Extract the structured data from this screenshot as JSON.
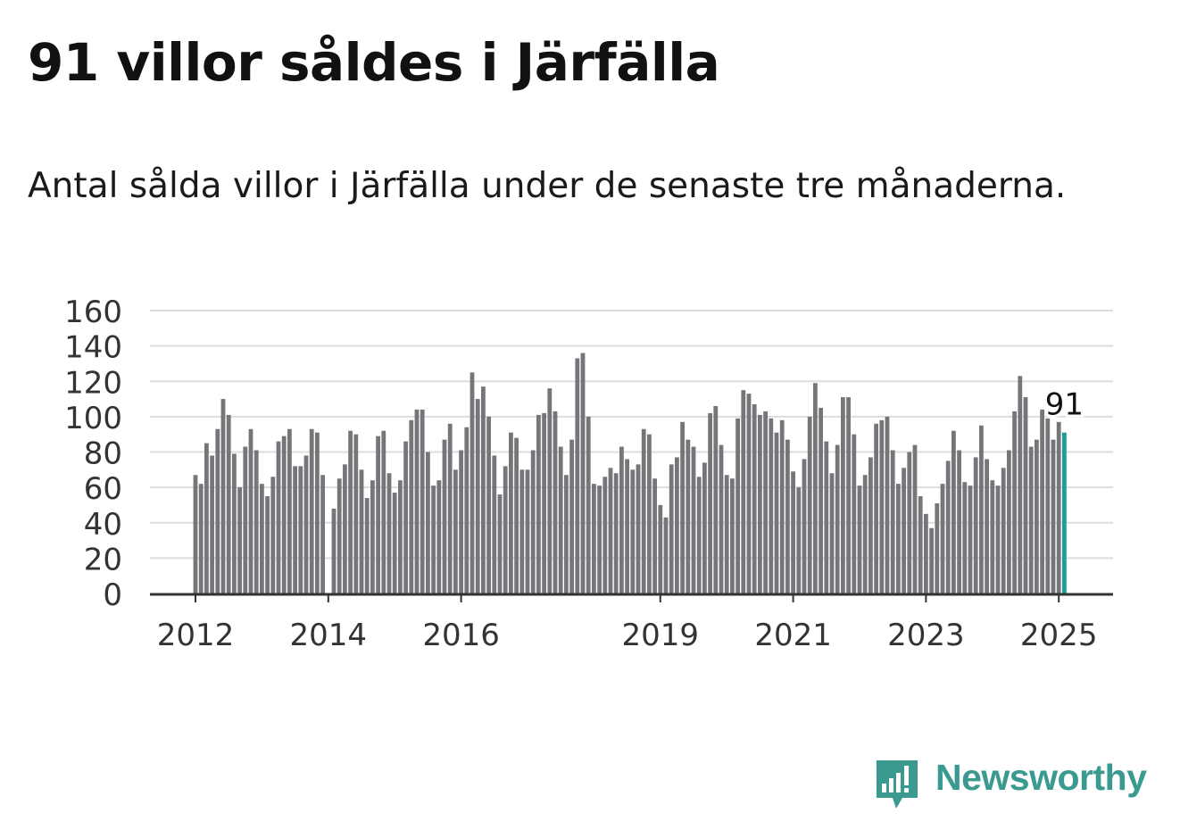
{
  "header": {
    "title": "91 villor såldes i Järfälla",
    "subtitle": "Antal sålda villor i Järfälla under de senaste tre månaderna."
  },
  "brand": {
    "name": "Newsworthy",
    "icon": "newsworthy-chart-icon",
    "color": "#3a9a90"
  },
  "chart_data": {
    "type": "bar",
    "title": "",
    "xlabel": "",
    "ylabel": "",
    "ylim": [
      0,
      160
    ],
    "yticks": [
      "0",
      "20",
      "40",
      "60",
      "80",
      "100",
      "120",
      "140",
      "160"
    ],
    "xticks": [
      "2012",
      "2014",
      "2016",
      "2019",
      "2021",
      "2023",
      "2025"
    ],
    "grid": true,
    "bar_color": "#76767a",
    "highlight_color": "#1a9e9c",
    "highlight_label": "91",
    "start": "2012-01",
    "frequency": "monthly",
    "values": [
      67,
      62,
      85,
      78,
      93,
      110,
      101,
      79,
      60,
      83,
      93,
      81,
      62,
      55,
      66,
      86,
      89,
      93,
      72,
      72,
      78,
      93,
      91,
      67,
      0,
      48,
      65,
      73,
      92,
      90,
      70,
      54,
      64,
      89,
      92,
      68,
      57,
      64,
      86,
      98,
      104,
      104,
      80,
      61,
      64,
      87,
      96,
      70,
      81,
      94,
      125,
      110,
      117,
      100,
      78,
      56,
      72,
      91,
      88,
      70,
      70,
      81,
      101,
      102,
      116,
      103,
      83,
      67,
      87,
      133,
      136,
      100,
      62,
      61,
      66,
      71,
      68,
      83,
      76,
      70,
      73,
      93,
      90,
      65,
      50,
      43,
      73,
      77,
      97,
      87,
      83,
      66,
      74,
      102,
      106,
      84,
      67,
      65,
      99,
      115,
      113,
      107,
      101,
      103,
      99,
      91,
      98,
      87,
      69,
      60,
      76,
      100,
      119,
      105,
      86,
      68,
      84,
      111,
      111,
      90,
      61,
      67,
      77,
      96,
      98,
      100,
      81,
      62,
      71,
      80,
      84,
      55,
      45,
      37,
      51,
      62,
      75,
      92,
      81,
      63,
      61,
      77,
      95,
      76,
      64,
      61,
      71,
      81,
      103,
      123,
      111,
      83,
      87,
      104,
      99,
      87,
      97,
      91
    ]
  }
}
